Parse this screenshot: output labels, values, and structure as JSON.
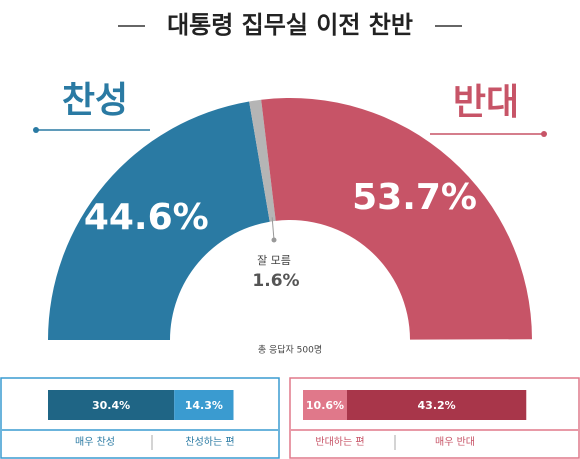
{
  "chart_data": [
    {
      "type": "half-donut",
      "title": "대통령 집무실 이전 찬반",
      "categories": [
        "찬성",
        "잘 모름",
        "반대"
      ],
      "values": [
        44.6,
        1.6,
        53.7
      ],
      "value_labels": [
        "44.6%",
        "1.6%",
        "53.7%"
      ],
      "colors": [
        "#2a7aa3",
        "#b5b5b5",
        "#c75467"
      ],
      "note": "총 응답자 500명"
    },
    {
      "type": "stacked-bar",
      "series": [
        {
          "name": "매우 찬성",
          "color": "#1f6585",
          "values": [
            30.4
          ],
          "value_labels": [
            "30.4%"
          ]
        },
        {
          "name": "찬성하는 편",
          "color": "#3a9bd0",
          "values": [
            14.3
          ],
          "value_labels": [
            "14.3%"
          ]
        }
      ]
    },
    {
      "type": "stacked-bar",
      "series": [
        {
          "name": "반대하는 편",
          "color": "#e0788a",
          "values": [
            10.6
          ],
          "value_labels": [
            "10.6%"
          ]
        },
        {
          "name": "매우 반대",
          "color": "#a8364a",
          "values": [
            43.2
          ],
          "value_labels": [
            "43.2%"
          ]
        }
      ]
    }
  ]
}
